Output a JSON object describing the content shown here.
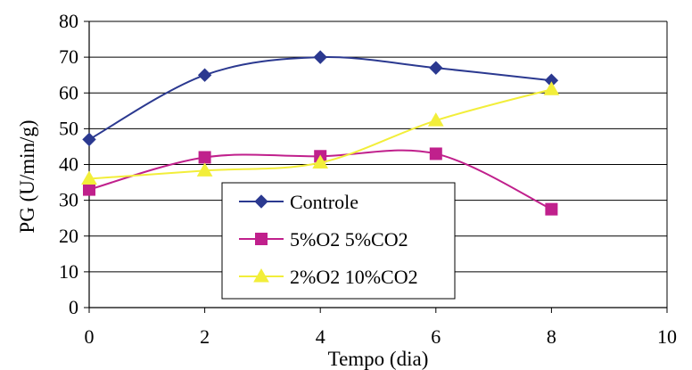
{
  "chart_data": {
    "type": "line",
    "xlabel": "Tempo (dia)",
    "ylabel": "PG (U/min/g)",
    "xlim": [
      0,
      10
    ],
    "ylim": [
      0,
      80
    ],
    "x_ticks": [
      0,
      2,
      4,
      6,
      8,
      10
    ],
    "y_ticks": [
      0,
      10,
      20,
      30,
      40,
      50,
      60,
      70,
      80
    ],
    "grid": "horizontal",
    "smoothed": true,
    "legend_position": "lower-center",
    "series": [
      {
        "name": "Controle",
        "marker": "diamond",
        "color": "#2B3990",
        "x": [
          0,
          2,
          4,
          6,
          8
        ],
        "y": [
          47,
          65,
          70,
          67,
          63.5
        ]
      },
      {
        "name": "5%O2 5%CO2",
        "marker": "square",
        "color": "#C0208C",
        "x": [
          0,
          2,
          4,
          6,
          8
        ],
        "y": [
          33,
          42,
          42.3,
          43,
          27.5
        ]
      },
      {
        "name": "2%O2 10%CO2",
        "marker": "triangle",
        "color": "#F2EE3A",
        "x": [
          0,
          2,
          4,
          6,
          8
        ],
        "y": [
          36,
          38.3,
          40.5,
          52.3,
          61
        ]
      }
    ]
  }
}
